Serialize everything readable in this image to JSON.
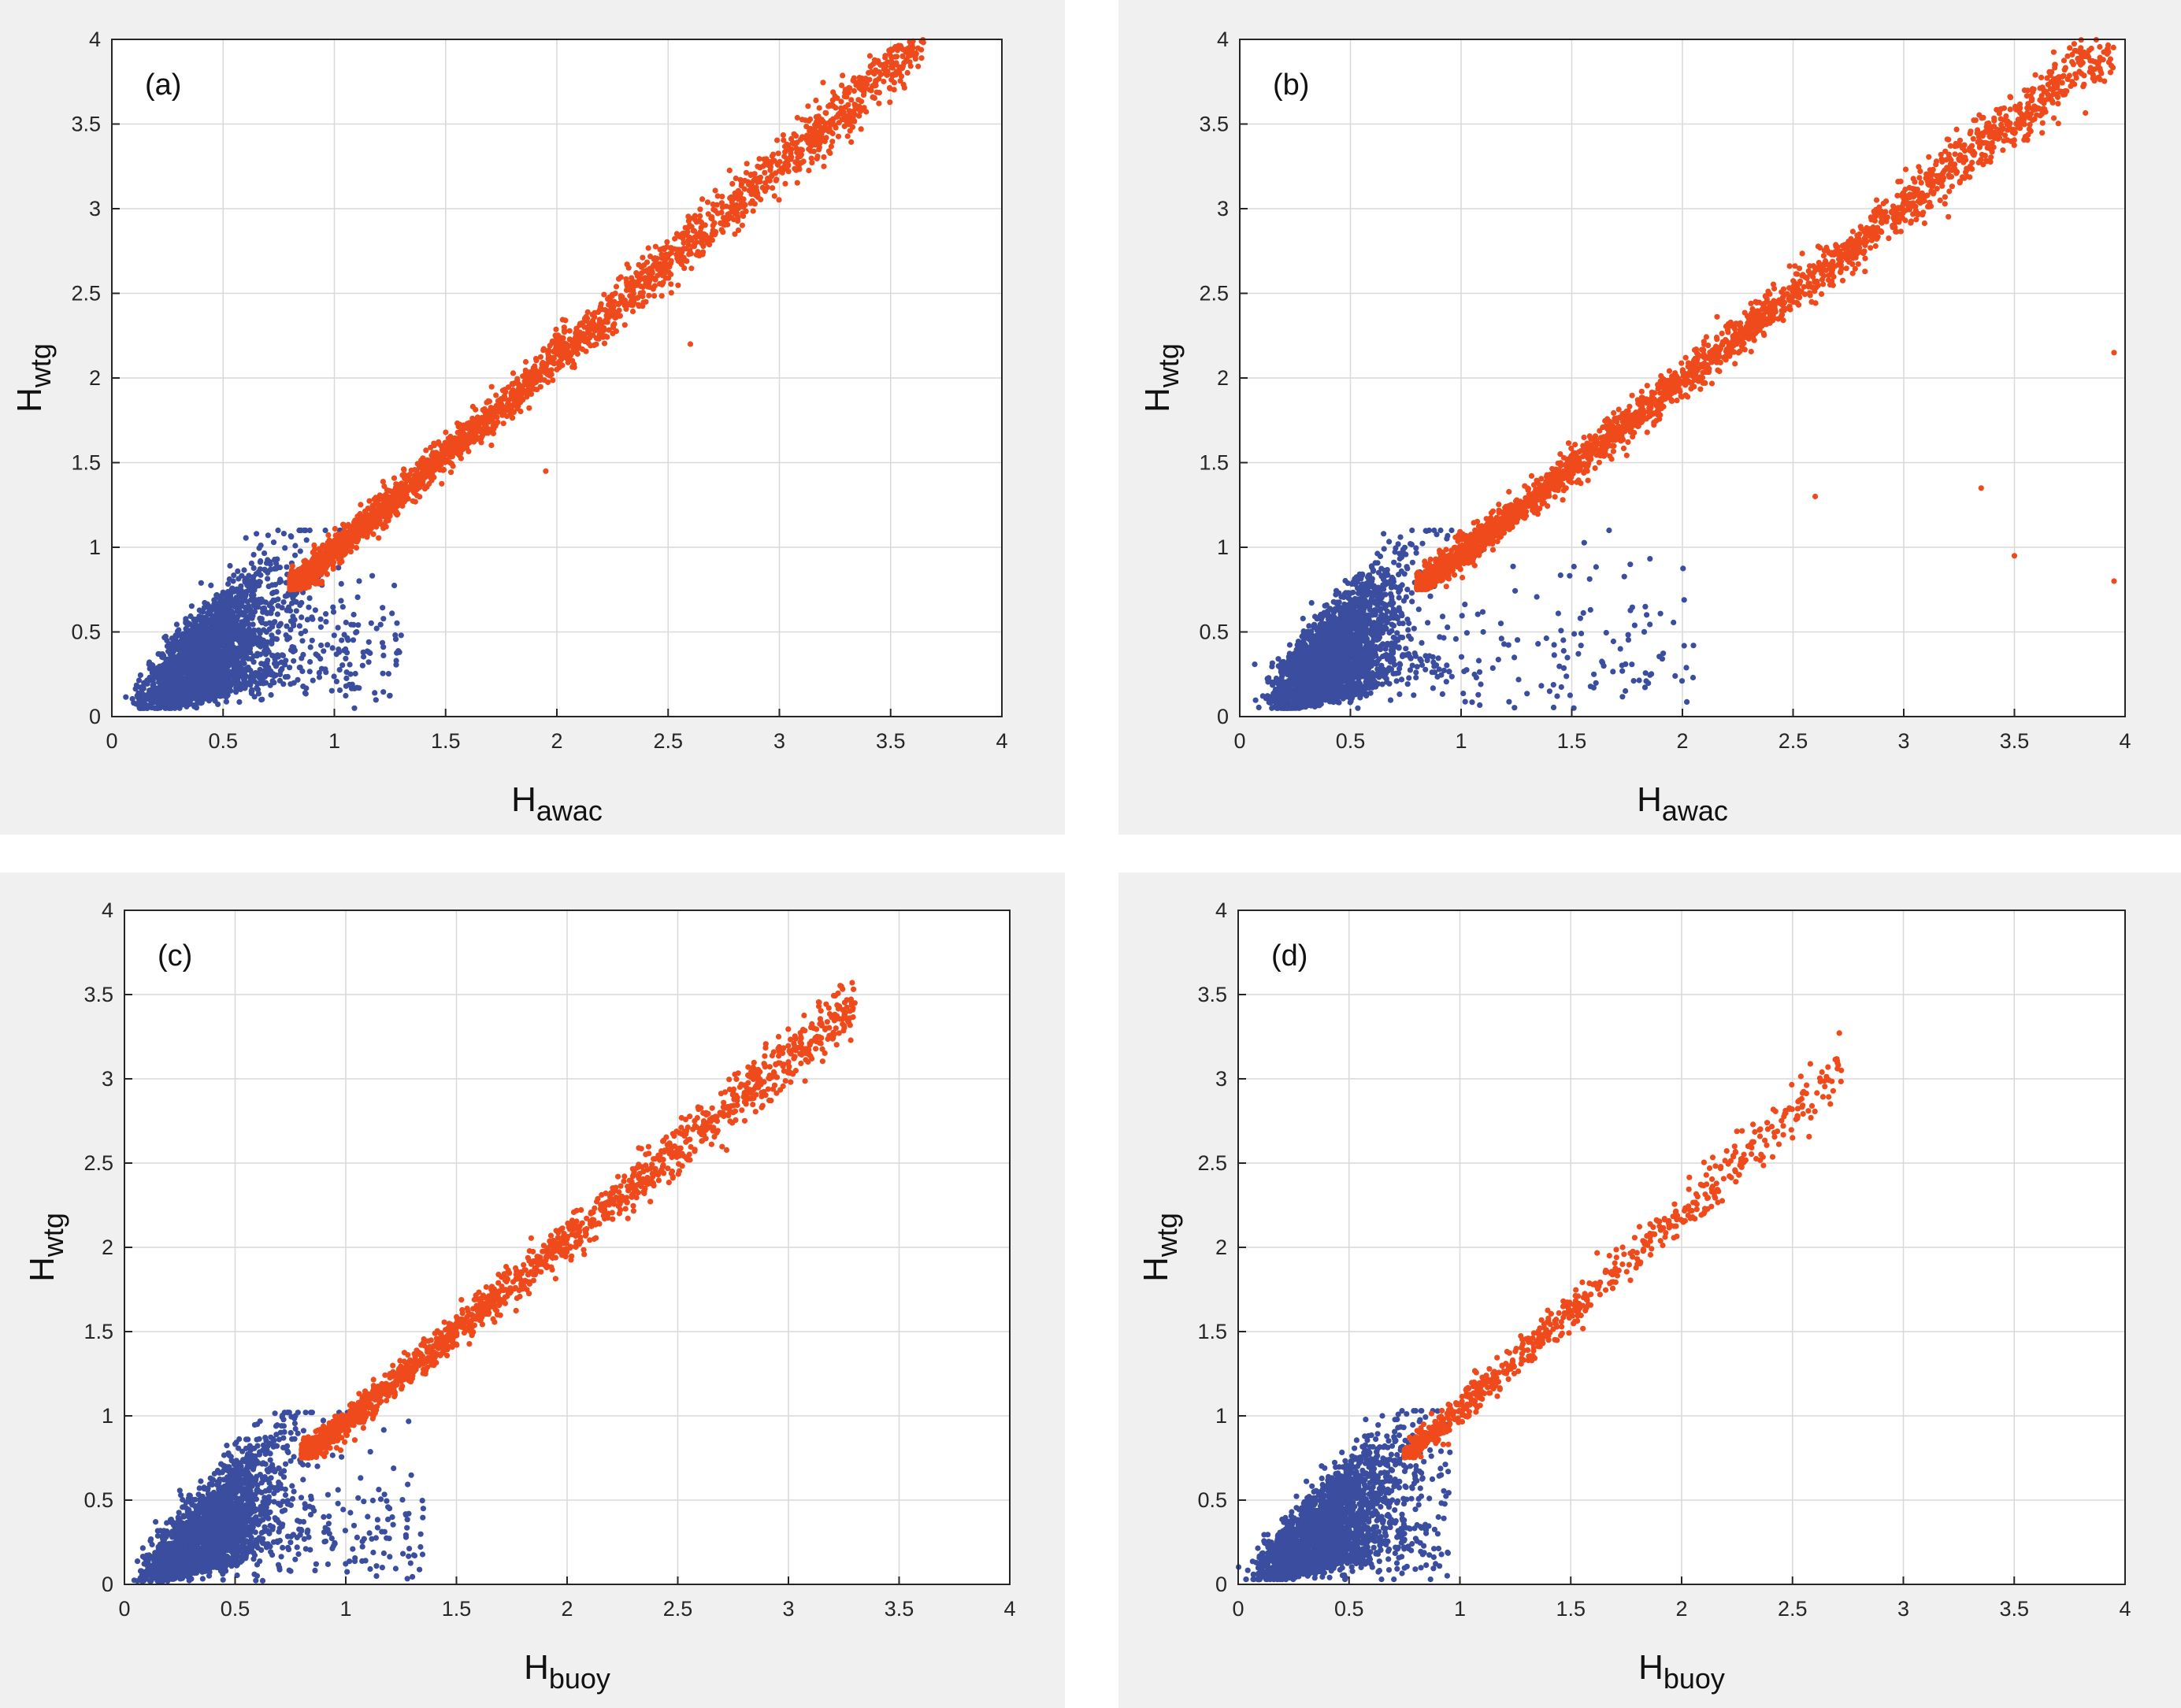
{
  "colors": {
    "low_series": "#3a4d9e",
    "high_series": "#ef4a1c",
    "grid": "#d9d9d9",
    "axis": "#262626",
    "panel_bg": "#f0f0f0"
  },
  "chart_data": [
    {
      "type": "scatter",
      "panel_label": "(a)",
      "xlabel": {
        "main": "H",
        "sub": "awac"
      },
      "ylabel": {
        "main": "H",
        "sub": "wtg"
      },
      "xlim": [
        0,
        4
      ],
      "ylim": [
        0,
        4
      ],
      "xticks": [
        "0",
        "0.5",
        "1",
        "1.5",
        "2",
        "2.5",
        "3",
        "3.5",
        "4"
      ],
      "yticks": [
        "0",
        "0.5",
        "1",
        "1.5",
        "2",
        "2.5",
        "3",
        "3.5",
        "4"
      ],
      "grid": true,
      "series": [
        {
          "color": "blue",
          "x_range": [
            0.1,
            1.3
          ],
          "y_range": [
            0.05,
            1.1
          ],
          "points": [
            [
              0.15,
              0.1
            ],
            [
              0.3,
              0.25
            ],
            [
              0.45,
              0.4
            ],
            [
              0.6,
              0.55
            ],
            [
              0.7,
              0.85
            ],
            [
              0.65,
              1.08
            ],
            [
              0.9,
              0.45
            ],
            [
              1.1,
              0.5
            ],
            [
              1.3,
              0.48
            ],
            [
              0.4,
              0.08
            ]
          ]
        },
        {
          "color": "orange",
          "x_range": [
            0.8,
            3.65
          ],
          "y_range": [
            0.75,
            4.0
          ],
          "points": [
            [
              0.85,
              0.85
            ],
            [
              1.2,
              1.25
            ],
            [
              1.6,
              1.65
            ],
            [
              2.0,
              2.05
            ],
            [
              2.4,
              2.45
            ],
            [
              2.8,
              2.85
            ],
            [
              3.2,
              3.25
            ],
            [
              3.6,
              3.95
            ],
            [
              2.6,
              2.2
            ],
            [
              1.95,
              1.45
            ]
          ]
        }
      ]
    },
    {
      "type": "scatter",
      "panel_label": "(b)",
      "xlabel": {
        "main": "H",
        "sub": "awac"
      },
      "ylabel": {
        "main": "H",
        "sub": "wtg"
      },
      "xlim": [
        0,
        4
      ],
      "ylim": [
        0,
        4
      ],
      "xticks": [
        "0",
        "0.5",
        "1",
        "1.5",
        "2",
        "2.5",
        "3",
        "3.5",
        "4"
      ],
      "yticks": [
        "0",
        "0.5",
        "1",
        "1.5",
        "2",
        "2.5",
        "3",
        "3.5",
        "4"
      ],
      "grid": true,
      "series": [
        {
          "color": "blue",
          "x_range": [
            0.1,
            2.05
          ],
          "y_range": [
            0.05,
            1.1
          ],
          "points": [
            [
              0.15,
              0.1
            ],
            [
              0.35,
              0.3
            ],
            [
              0.6,
              0.6
            ],
            [
              0.65,
              1.08
            ],
            [
              1.1,
              0.5
            ],
            [
              1.6,
              0.25
            ],
            [
              2.05,
              0.42
            ],
            [
              1.4,
              0.15
            ]
          ]
        },
        {
          "color": "orange",
          "x_range": [
            0.8,
            3.95
          ],
          "y_range": [
            0.75,
            4.0
          ],
          "points": [
            [
              0.85,
              0.85
            ],
            [
              1.3,
              1.35
            ],
            [
              1.8,
              1.85
            ],
            [
              2.3,
              2.35
            ],
            [
              2.8,
              2.85
            ],
            [
              3.3,
              3.25
            ],
            [
              3.8,
              3.95
            ],
            [
              3.5,
              0.95
            ],
            [
              3.95,
              0.8
            ],
            [
              3.95,
              2.15
            ],
            [
              3.35,
              1.35
            ],
            [
              2.6,
              1.3
            ]
          ]
        }
      ]
    },
    {
      "type": "scatter",
      "panel_label": "(c)",
      "xlabel": {
        "main": "H",
        "sub": "buoy"
      },
      "ylabel": {
        "main": "H",
        "sub": "wtg"
      },
      "xlim": [
        0,
        4
      ],
      "ylim": [
        0,
        4
      ],
      "xticks": [
        "0",
        "0.5",
        "1",
        "1.5",
        "2",
        "2.5",
        "3",
        "3.5",
        "4"
      ],
      "yticks": [
        "0",
        "0.5",
        "1",
        "1.5",
        "2",
        "2.5",
        "3",
        "3.5",
        "4"
      ],
      "grid": true,
      "series": [
        {
          "color": "blue",
          "x_range": [
            0.05,
            1.35
          ],
          "y_range": [
            0.02,
            1.02
          ],
          "points": [
            [
              0.1,
              0.05
            ],
            [
              0.3,
              0.2
            ],
            [
              0.5,
              0.45
            ],
            [
              0.6,
              0.95
            ],
            [
              0.9,
              0.4
            ],
            [
              1.35,
              0.45
            ],
            [
              0.7,
              0.1
            ]
          ]
        },
        {
          "color": "orange",
          "x_range": [
            0.8,
            3.3
          ],
          "y_range": [
            0.75,
            3.45
          ],
          "points": [
            [
              0.85,
              0.85
            ],
            [
              1.2,
              1.25
            ],
            [
              1.6,
              1.65
            ],
            [
              2.0,
              2.05
            ],
            [
              2.4,
              2.45
            ],
            [
              2.7,
              2.8
            ],
            [
              3.0,
              3.1
            ],
            [
              3.3,
              3.45
            ]
          ]
        }
      ]
    },
    {
      "type": "scatter",
      "panel_label": "(d)",
      "xlabel": {
        "main": "H",
        "sub": "buoy"
      },
      "ylabel": {
        "main": "H",
        "sub": "wtg"
      },
      "xlim": [
        0,
        4
      ],
      "ylim": [
        0,
        4
      ],
      "xticks": [
        "0",
        "0.5",
        "1",
        "1.5",
        "2",
        "2.5",
        "3",
        "3.5",
        "4"
      ],
      "yticks": [
        "0",
        "0.5",
        "1",
        "1.5",
        "2",
        "2.5",
        "3",
        "3.5",
        "4"
      ],
      "grid": true,
      "series": [
        {
          "color": "blue",
          "x_range": [
            0.05,
            0.95
          ],
          "y_range": [
            0.03,
            1.03
          ],
          "points": [
            [
              0.1,
              0.05
            ],
            [
              0.3,
              0.25
            ],
            [
              0.5,
              0.5
            ],
            [
              0.65,
              1.0
            ],
            [
              0.9,
              0.3
            ],
            [
              0.6,
              0.12
            ]
          ]
        },
        {
          "color": "orange",
          "x_range": [
            0.75,
            2.72
          ],
          "y_range": [
            0.75,
            3.05
          ],
          "points": [
            [
              0.8,
              0.85
            ],
            [
              1.1,
              1.1
            ],
            [
              1.4,
              1.45
            ],
            [
              1.8,
              1.9
            ],
            [
              2.1,
              2.2
            ],
            [
              2.3,
              2.6
            ],
            [
              2.5,
              2.65
            ],
            [
              2.72,
              3.05
            ]
          ]
        }
      ]
    }
  ]
}
